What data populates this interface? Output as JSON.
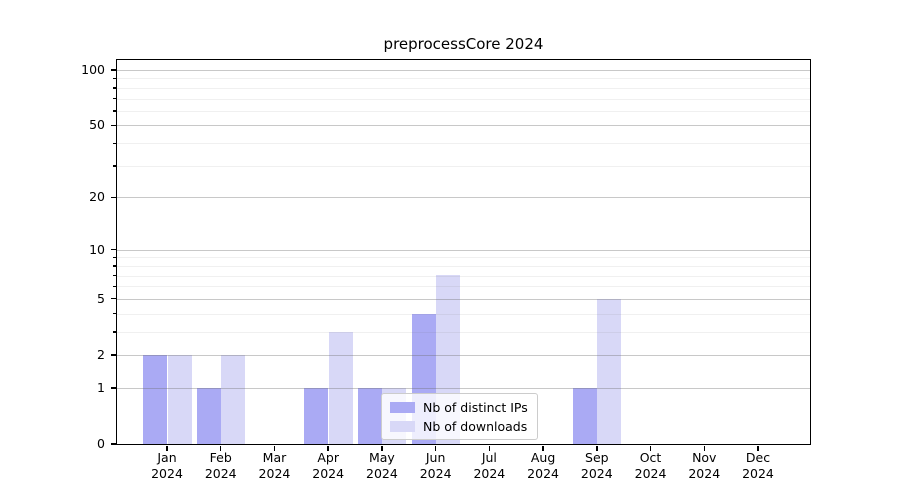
{
  "title": "preprocessCore 2024",
  "chart_data": {
    "type": "bar",
    "title": "preprocessCore 2024",
    "x_categories_month": [
      "Jan",
      "Feb",
      "Mar",
      "Apr",
      "May",
      "Jun",
      "Jul",
      "Aug",
      "Sep",
      "Oct",
      "Nov",
      "Dec"
    ],
    "x_year": "2024",
    "series": [
      {
        "name": "Nb of distinct IPs",
        "color": "#aaaaf4",
        "values": [
          2,
          1,
          0,
          1,
          1,
          4,
          0,
          0,
          1,
          0,
          0,
          0
        ]
      },
      {
        "name": "Nb of downloads",
        "color": "#d8d8f7",
        "values": [
          2,
          2,
          0,
          3,
          1,
          7,
          0,
          0,
          5,
          0,
          0,
          0
        ]
      }
    ],
    "y_scale": "log1p",
    "y_axis_ticks": [
      0,
      1,
      2,
      5,
      10,
      20,
      50,
      100
    ],
    "y_minor_gridlines": [
      3,
      4,
      6,
      7,
      8,
      9,
      30,
      40,
      60,
      70,
      80,
      90
    ],
    "ylim": [
      0,
      113
    ],
    "grid": true,
    "legend_position": "lower-center"
  },
  "colors": {
    "bar_distinct_ips": "#aaaaf4",
    "bar_downloads": "#d8d8f7",
    "grid_major": "#c9c9c9",
    "grid_minor": "#ebebeb",
    "axis": "#000000",
    "background": "#ffffff"
  }
}
